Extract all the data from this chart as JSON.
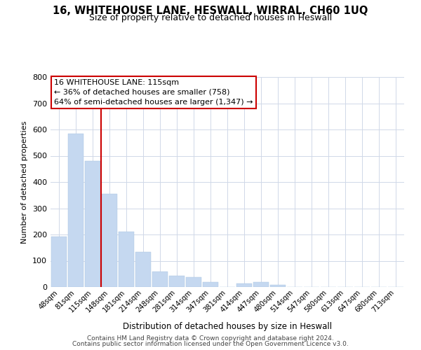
{
  "title": "16, WHITEHOUSE LANE, HESWALL, WIRRAL, CH60 1UQ",
  "subtitle": "Size of property relative to detached houses in Heswall",
  "xlabel": "Distribution of detached houses by size in Heswall",
  "ylabel": "Number of detached properties",
  "bar_labels": [
    "48sqm",
    "81sqm",
    "115sqm",
    "148sqm",
    "181sqm",
    "214sqm",
    "248sqm",
    "281sqm",
    "314sqm",
    "347sqm",
    "381sqm",
    "414sqm",
    "447sqm",
    "480sqm",
    "514sqm",
    "547sqm",
    "580sqm",
    "613sqm",
    "647sqm",
    "680sqm",
    "713sqm"
  ],
  "bar_values": [
    193,
    583,
    481,
    354,
    212,
    133,
    60,
    44,
    37,
    18,
    0,
    13,
    18,
    7,
    0,
    0,
    0,
    0,
    0,
    0,
    0
  ],
  "bar_color": "#c5d8f0",
  "bar_edge_color": "#a8c4e0",
  "vline_x": 2.5,
  "vline_color": "#cc0000",
  "annotation_title": "16 WHITEHOUSE LANE: 115sqm",
  "annotation_line1": "← 36% of detached houses are smaller (758)",
  "annotation_line2": "64% of semi-detached houses are larger (1,347) →",
  "ylim": [
    0,
    800
  ],
  "yticks": [
    0,
    100,
    200,
    300,
    400,
    500,
    600,
    700,
    800
  ],
  "footer1": "Contains HM Land Registry data © Crown copyright and database right 2024.",
  "footer2": "Contains public sector information licensed under the Open Government Licence v3.0.",
  "background_color": "#ffffff",
  "grid_color": "#d0d8e8"
}
